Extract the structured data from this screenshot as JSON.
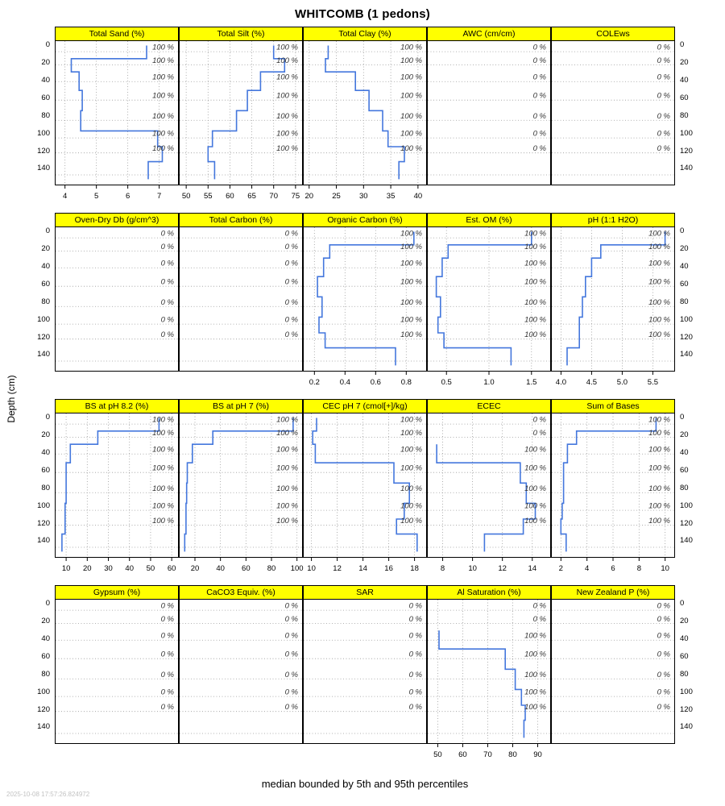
{
  "title": "WHITCOMB (1 pedons)",
  "ylabel": "Depth (cm)",
  "caption": "median bounded by 5th and 95th percentiles",
  "timestamp": "2025-10-08 17:57:26.824972",
  "colors": {
    "profile_line": "#4477dd",
    "strip_bg": "#ffff00",
    "gridline": "#999999",
    "panel_border": "#000000"
  },
  "chart_data": {
    "type": "line",
    "subtype": "soil-depth-profile-lattice",
    "y_axis": {
      "label": "Depth (cm)",
      "ticks": [
        0,
        20,
        40,
        60,
        80,
        100,
        120,
        140
      ],
      "tick_labels": [
        "0",
        "20",
        "40",
        "60",
        "80",
        "100",
        "120",
        "140"
      ],
      "range": [
        -5,
        158
      ]
    },
    "depth_boundaries": [
      0,
      15,
      30,
      51,
      74,
      97,
      115,
      132,
      152
    ],
    "gridline_depths": [
      7,
      22,
      41,
      62,
      85,
      105,
      122,
      147
    ],
    "rows": [
      [
        {
          "title": "Total Sand (%)",
          "xrange": [
            3.7,
            7.6
          ],
          "xticks": [
            4,
            5,
            6,
            7
          ],
          "xtick_labels": [
            "4",
            "5",
            "6",
            "7"
          ],
          "values": [
            6.6,
            4.2,
            4.45,
            4.55,
            4.5,
            6.95,
            7.1,
            6.65
          ],
          "pct_labels": [
            "100 %",
            "100 %",
            "100 %",
            "100 %",
            "100 %",
            "100 %",
            "100 %",
            null
          ]
        },
        {
          "title": "Total Silt (%)",
          "xrange": [
            48.5,
            76.5
          ],
          "xticks": [
            50,
            55,
            60,
            65,
            70,
            75
          ],
          "xtick_labels": [
            "50",
            "55",
            "60",
            "65",
            "70",
            "75"
          ],
          "values": [
            70,
            72.5,
            67,
            64,
            61.5,
            56,
            55,
            56.5
          ],
          "pct_labels": [
            "100 %",
            "100 %",
            "100 %",
            "100 %",
            "100 %",
            "100 %",
            "100 %",
            null
          ]
        },
        {
          "title": "Total Clay (%)",
          "xrange": [
            19,
            41.5
          ],
          "xticks": [
            20,
            25,
            30,
            35,
            40
          ],
          "xtick_labels": [
            "20",
            "25",
            "30",
            "35",
            "40"
          ],
          "values": [
            23.5,
            23,
            28.5,
            31,
            33.5,
            34.5,
            37.5,
            36.5
          ],
          "pct_labels": [
            "100 %",
            "100 %",
            "100 %",
            "100 %",
            "100 %",
            "100 %",
            "100 %",
            null
          ]
        },
        {
          "title": "AWC (cm/cm)",
          "xrange": [
            0,
            1
          ],
          "xticks": [],
          "xtick_labels": [],
          "values": [
            null,
            null,
            null,
            null,
            null,
            null,
            null,
            null
          ],
          "pct_labels": [
            "0 %",
            "0 %",
            "0 %",
            "0 %",
            "0 %",
            "0 %",
            "0 %",
            null
          ]
        },
        {
          "title": "COLEws",
          "xrange": [
            0,
            1
          ],
          "xticks": [],
          "xtick_labels": [],
          "values": [
            null,
            null,
            null,
            null,
            null,
            null,
            null,
            null
          ],
          "pct_labels": [
            "0 %",
            "0 %",
            "0 %",
            "0 %",
            "0 %",
            "0 %",
            "0 %",
            null
          ]
        }
      ],
      [
        {
          "title": "Oven-Dry Db (g/cm^3)",
          "xrange": [
            0,
            1
          ],
          "xticks": [],
          "xtick_labels": [],
          "values": [
            null,
            null,
            null,
            null,
            null,
            null,
            null,
            null
          ],
          "pct_labels": [
            "0 %",
            "0 %",
            "0 %",
            "0 %",
            "0 %",
            "0 %",
            "0 %",
            null
          ]
        },
        {
          "title": "Total Carbon (%)",
          "xrange": [
            0,
            1
          ],
          "xticks": [],
          "xtick_labels": [],
          "values": [
            null,
            null,
            null,
            null,
            null,
            null,
            null,
            null
          ],
          "pct_labels": [
            "0 %",
            "0 %",
            "0 %",
            "0 %",
            "0 %",
            "0 %",
            "0 %",
            null
          ]
        },
        {
          "title": "Organic Carbon (%)",
          "xrange": [
            0.13,
            0.93
          ],
          "xticks": [
            0.2,
            0.4,
            0.6,
            0.8
          ],
          "xtick_labels": [
            "0.2",
            "0.4",
            "0.6",
            "0.8"
          ],
          "values": [
            0.85,
            0.3,
            0.26,
            0.22,
            0.25,
            0.23,
            0.27,
            0.73
          ],
          "pct_labels": [
            "100 %",
            "100 %",
            "100 %",
            "100 %",
            "100 %",
            "100 %",
            "100 %",
            null
          ]
        },
        {
          "title": "Est. OM (%)",
          "xrange": [
            0.28,
            1.72
          ],
          "xticks": [
            0.5,
            1.0,
            1.5
          ],
          "xtick_labels": [
            "0.5",
            "1.0",
            "1.5"
          ],
          "values": [
            1.5,
            0.52,
            0.45,
            0.38,
            0.43,
            0.4,
            0.47,
            1.26
          ],
          "pct_labels": [
            "100 %",
            "100 %",
            "100 %",
            "100 %",
            "100 %",
            "100 %",
            "100 %",
            null
          ]
        },
        {
          "title": "pH (1:1 H2O)",
          "xrange": [
            3.85,
            5.85
          ],
          "xticks": [
            4.0,
            4.5,
            5.0,
            5.5
          ],
          "xtick_labels": [
            "4.0",
            "4.5",
            "5.0",
            "5.5"
          ],
          "values": [
            5.7,
            4.65,
            4.5,
            4.4,
            4.35,
            4.3,
            4.3,
            4.1
          ],
          "pct_labels": [
            "100 %",
            "100 %",
            "100 %",
            "100 %",
            "100 %",
            "100 %",
            "100 %",
            null
          ]
        }
      ],
      [
        {
          "title": "BS at pH 8.2 (%)",
          "xrange": [
            5,
            63
          ],
          "xticks": [
            10,
            20,
            30,
            40,
            50,
            60
          ],
          "xtick_labels": [
            "10",
            "20",
            "30",
            "40",
            "50",
            "60"
          ],
          "values": [
            54,
            25,
            12,
            10,
            10,
            9.5,
            9.5,
            8
          ],
          "pct_labels": [
            "100 %",
            "100 %",
            "100 %",
            "100 %",
            "100 %",
            "100 %",
            "100 %",
            null
          ]
        },
        {
          "title": "BS at pH 7 (%)",
          "xrange": [
            8,
            104
          ],
          "xticks": [
            20,
            40,
            60,
            80,
            100
          ],
          "xtick_labels": [
            "20",
            "40",
            "60",
            "80",
            "100"
          ],
          "values": [
            97,
            34,
            18,
            14,
            13.5,
            13,
            13,
            12
          ],
          "pct_labels": [
            "100 %",
            "100 %",
            "100 %",
            "100 %",
            "100 %",
            "100 %",
            "100 %",
            null
          ]
        },
        {
          "title": "CEC pH 7 (cmol[+]/kg)",
          "xrange": [
            9.4,
            18.9
          ],
          "xticks": [
            10,
            12,
            14,
            16,
            18
          ],
          "xtick_labels": [
            "10",
            "12",
            "14",
            "16",
            "18"
          ],
          "values": [
            10.4,
            10.1,
            10.3,
            16.4,
            17.6,
            17.2,
            16.6,
            18.2
          ],
          "pct_labels": [
            "100 %",
            "100 %",
            "100 %",
            "100 %",
            "100 %",
            "100 %",
            "100 %",
            null
          ]
        },
        {
          "title": "ECEC",
          "xrange": [
            7,
            15.2
          ],
          "xticks": [
            8,
            10,
            12,
            14
          ],
          "xtick_labels": [
            "8",
            "10",
            "12",
            "14"
          ],
          "values": [
            null,
            null,
            7.6,
            13.2,
            13.6,
            14.2,
            13.4,
            10.8
          ],
          "pct_labels": [
            "0 %",
            "0 %",
            "100 %",
            "100 %",
            "100 %",
            "100 %",
            "100 %",
            null
          ]
        },
        {
          "title": "Sum of Bases",
          "xrange": [
            1.3,
            10.7
          ],
          "xticks": [
            2,
            4,
            6,
            8,
            10
          ],
          "xtick_labels": [
            "2",
            "4",
            "6",
            "8",
            "10"
          ],
          "values": [
            9.3,
            3.2,
            2.5,
            2.2,
            2.2,
            2.1,
            2.0,
            2.4
          ],
          "pct_labels": [
            "100 %",
            "100 %",
            "100 %",
            "100 %",
            "100 %",
            "100 %",
            "100 %",
            null
          ]
        }
      ],
      [
        {
          "title": "Gypsum (%)",
          "xrange": [
            0,
            1
          ],
          "xticks": [],
          "xtick_labels": [],
          "values": [
            null,
            null,
            null,
            null,
            null,
            null,
            null,
            null
          ],
          "pct_labels": [
            "0 %",
            "0 %",
            "0 %",
            "0 %",
            "0 %",
            "0 %",
            "0 %",
            null
          ]
        },
        {
          "title": "CaCO3 Equiv. (%)",
          "xrange": [
            0,
            1
          ],
          "xticks": [],
          "xtick_labels": [],
          "values": [
            null,
            null,
            null,
            null,
            null,
            null,
            null,
            null
          ],
          "pct_labels": [
            "0 %",
            "0 %",
            "0 %",
            "0 %",
            "0 %",
            "0 %",
            "0 %",
            null
          ]
        },
        {
          "title": "SAR",
          "xrange": [
            0,
            1
          ],
          "xticks": [],
          "xtick_labels": [],
          "values": [
            null,
            null,
            null,
            null,
            null,
            null,
            null,
            null
          ],
          "pct_labels": [
            "0 %",
            "0 %",
            "0 %",
            "0 %",
            "0 %",
            "0 %",
            "0 %",
            null
          ]
        },
        {
          "title": "Al Saturation (%)",
          "xrange": [
            46,
            95
          ],
          "xticks": [
            50,
            60,
            70,
            80,
            90
          ],
          "xtick_labels": [
            "50",
            "60",
            "70",
            "80",
            "90"
          ],
          "values": [
            null,
            null,
            50.5,
            77,
            81,
            83.5,
            85,
            84.5
          ],
          "pct_labels": [
            "0 %",
            "0 %",
            "100 %",
            "100 %",
            "100 %",
            "100 %",
            "100 %",
            null
          ]
        },
        {
          "title": "New Zealand P (%)",
          "xrange": [
            0,
            1
          ],
          "xticks": [],
          "xtick_labels": [],
          "values": [
            null,
            null,
            null,
            null,
            null,
            null,
            null,
            null
          ],
          "pct_labels": [
            "0 %",
            "0 %",
            "0 %",
            "0 %",
            "0 %",
            "0 %",
            "0 %",
            null
          ]
        }
      ]
    ]
  }
}
